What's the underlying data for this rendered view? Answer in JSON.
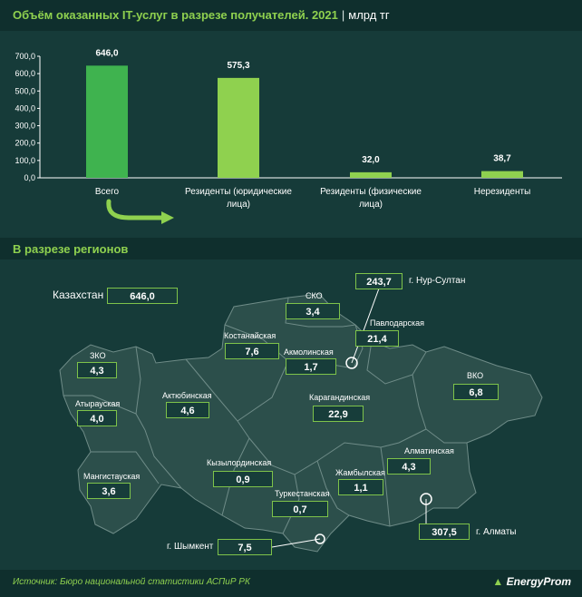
{
  "header": {
    "title": "Объём оказанных IT-услуг в разрезе получателей. 2021",
    "separator": "|",
    "unit": "млрд тг"
  },
  "chart_data": {
    "type": "bar",
    "categories": [
      "Всего",
      "Резиденты (юридические лица)",
      "Резиденты (физические лица)",
      "Нерезиденты"
    ],
    "category_lines": [
      [
        "Всего"
      ],
      [
        "Резиденты (юридические",
        "лица)"
      ],
      [
        "Резиденты (физические",
        "лица)"
      ],
      [
        "Нерезиденты"
      ]
    ],
    "values": [
      646.0,
      575.3,
      32.0,
      38.7
    ],
    "value_labels": [
      "646,0",
      "575,3",
      "32,0",
      "38,7"
    ],
    "ylim": [
      0,
      700
    ],
    "yticks": [
      "0,0",
      "100,0",
      "200,0",
      "300,0",
      "400,0",
      "500,0",
      "600,0",
      "700,0"
    ],
    "colors": {
      "total": "#3fb34f",
      "other": "#8fd14f",
      "axis": "#ffffff"
    },
    "grid": false
  },
  "regions_section": {
    "title": "В разрезе регионов"
  },
  "map": {
    "total_label": "Казахстан",
    "total_value": "646,0",
    "regions": [
      {
        "name": "СКО",
        "value": "3,4"
      },
      {
        "name": "Павлодарская",
        "value": "21,4"
      },
      {
        "name": "Костанайская",
        "value": "7,6"
      },
      {
        "name": "Акмолинская",
        "value": "1,7"
      },
      {
        "name": "ЗКО",
        "value": "4,3"
      },
      {
        "name": "Атырауская",
        "value": "4,0"
      },
      {
        "name": "Актюбинская",
        "value": "4,6"
      },
      {
        "name": "Карагандинская",
        "value": "22,9"
      },
      {
        "name": "ВКО",
        "value": "6,8"
      },
      {
        "name": "Мангистауская",
        "value": "3,6"
      },
      {
        "name": "Кызылординская",
        "value": "0,9"
      },
      {
        "name": "Жамбылская",
        "value": "1,1"
      },
      {
        "name": "Алматинская",
        "value": "4,3"
      },
      {
        "name": "Туркестанская",
        "value": "0,7"
      }
    ],
    "cities": [
      {
        "name": "г. Нур-Султан",
        "value": "243,7"
      },
      {
        "name": "г. Алматы",
        "value": "307,5"
      },
      {
        "name": "г. Шымкент",
        "value": "7,5"
      }
    ],
    "colors": {
      "land": "#2c4f4b",
      "border": "#6f8c88",
      "box_border": "#7ec34a"
    }
  },
  "footer": {
    "source": "Источник: Бюро национальной статистики АСПиР РК",
    "brand": "EnergyProm"
  }
}
